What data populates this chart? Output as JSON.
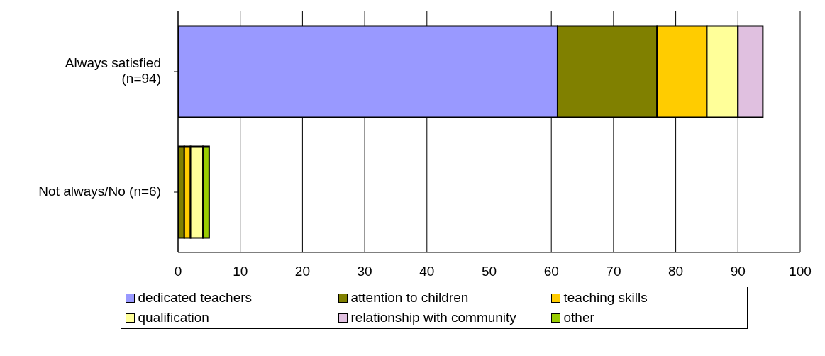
{
  "chart_data": {
    "type": "bar",
    "orientation": "horizontal",
    "stacked": true,
    "categories": [
      "Always satisfied\n(n=94)",
      "Not always/No (n=6)"
    ],
    "series": [
      {
        "name": "dedicated teachers",
        "color": "#9999ff",
        "values": [
          61,
          0
        ]
      },
      {
        "name": "attention to children",
        "color": "#808000",
        "values": [
          16,
          1
        ]
      },
      {
        "name": "teaching skills",
        "color": "#ffcc00",
        "values": [
          8,
          1
        ]
      },
      {
        "name": "qualification",
        "color": "#ffff99",
        "values": [
          5,
          2
        ]
      },
      {
        "name": "relationship with community",
        "color": "#e0c0e0",
        "values": [
          4,
          0
        ]
      },
      {
        "name": "other",
        "color": "#99cc00",
        "values": [
          0,
          1
        ]
      }
    ],
    "xlim": [
      0,
      100
    ],
    "xticks": [
      0,
      10,
      20,
      30,
      40,
      50,
      60,
      70,
      80,
      90,
      100
    ],
    "grid": "x",
    "legend": "bottom"
  }
}
